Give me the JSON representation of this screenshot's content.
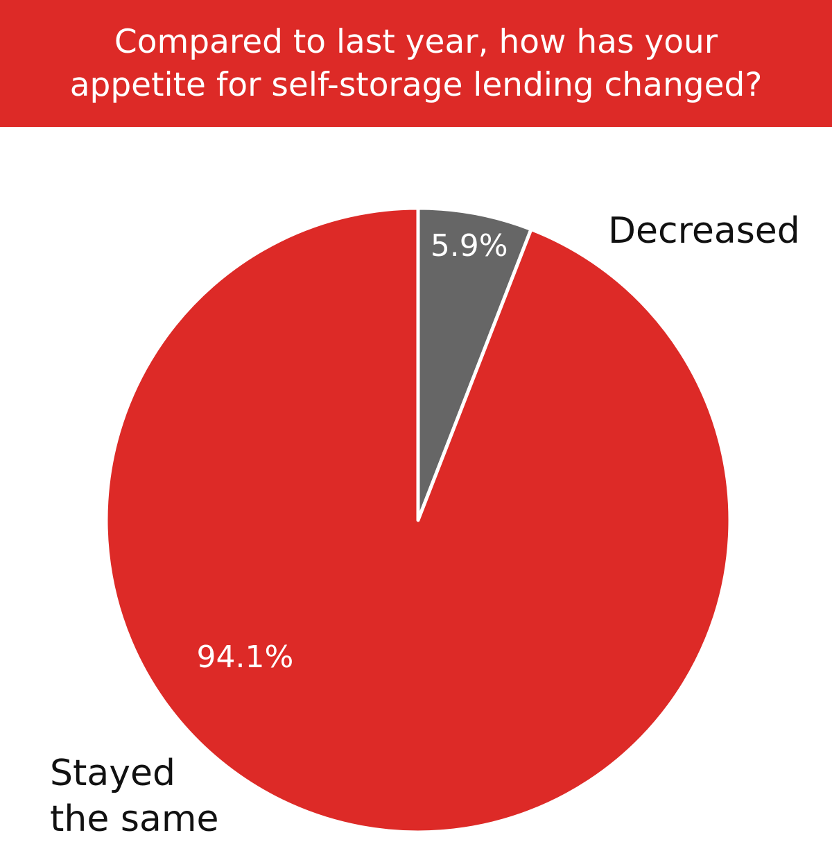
{
  "chart_data": {
    "type": "pie",
    "title_lines": [
      "Compared to last year, how has your",
      "appetite for self-storage lending changed?"
    ],
    "slices": [
      {
        "label": "Decreased",
        "label_lines": [
          "Decreased"
        ],
        "value": 5.9,
        "value_label": "5.9%",
        "color": "#666666"
      },
      {
        "label": "Stayed the same",
        "label_lines": [
          "Stayed",
          "the same"
        ],
        "value": 94.1,
        "value_label": "94.1%",
        "color": "#dd2a27"
      }
    ],
    "start_angle": "12 o'clock",
    "direction": "clockwise",
    "slice_separator_color": "#ffffff",
    "value_label_color": "#ffffff"
  }
}
